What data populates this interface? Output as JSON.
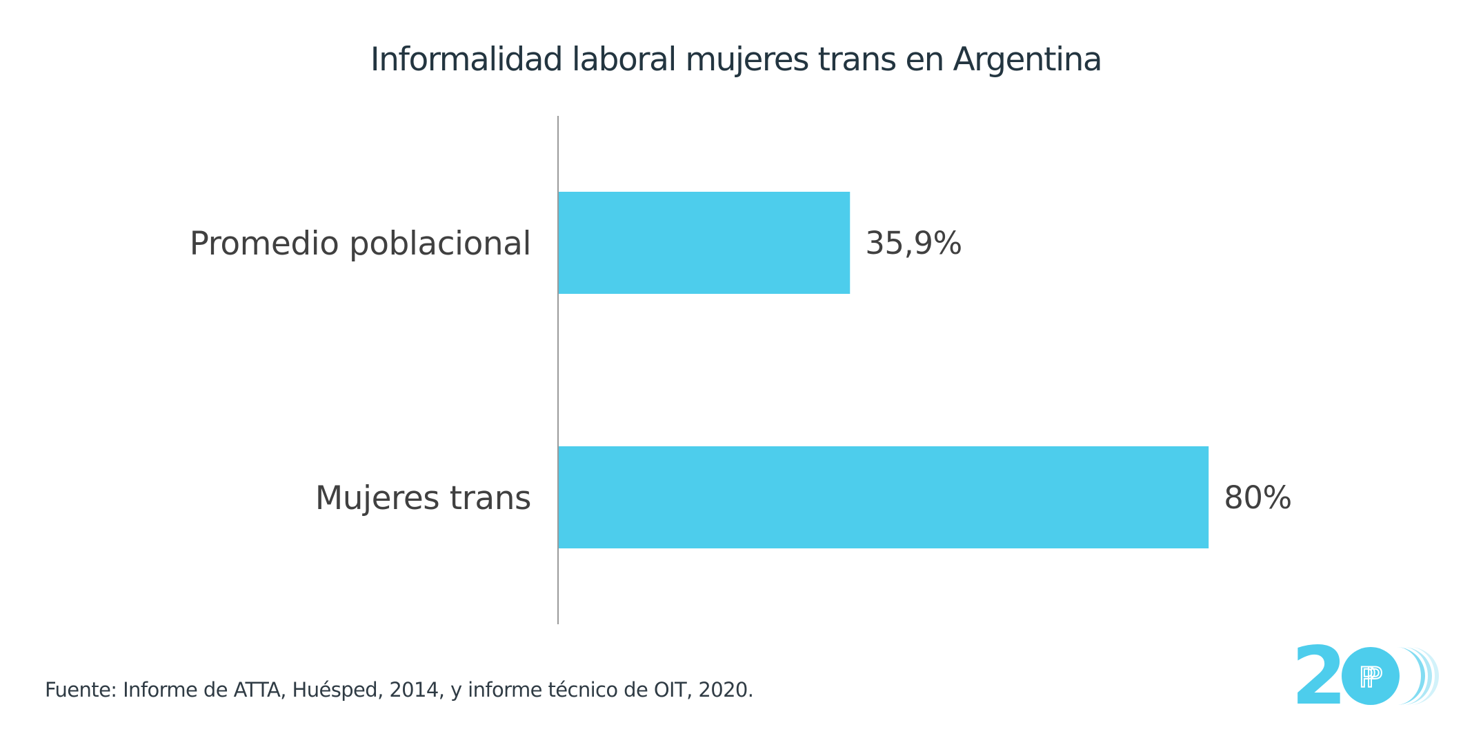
{
  "chart_data": {
    "type": "bar",
    "orientation": "horizontal",
    "title": "Informalidad laboral mujeres trans en Argentina",
    "categories": [
      "Promedio poblacional",
      "Mujeres trans"
    ],
    "values": [
      35.9,
      80
    ],
    "value_labels": [
      "35,9%",
      "80%"
    ],
    "unit": "%",
    "xlabel": "",
    "ylabel": "",
    "xlim": [
      0,
      100
    ],
    "grid": false,
    "legend": "none",
    "bar_color": "#4DCDEC"
  },
  "source_note": "Fuente: Informe de ATTA, Huésped, 2014, y informe técnico de OIT, 2020.",
  "logo": {
    "text": "2",
    "monogram": "PP",
    "accent_color": "#4DCDEC"
  }
}
